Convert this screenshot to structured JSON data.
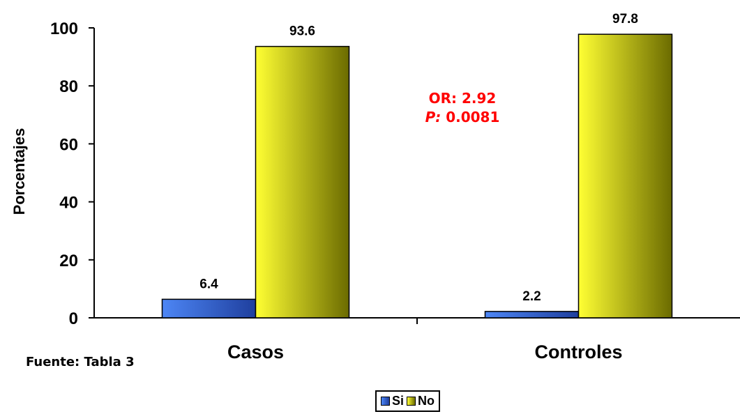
{
  "chart_data": {
    "type": "bar",
    "categories": [
      "Casos",
      "Controles"
    ],
    "series": [
      {
        "name": "Si",
        "values": [
          6.4,
          2.2
        ],
        "color": "#3a6fe0"
      },
      {
        "name": "No",
        "values": [
          93.6,
          97.8
        ],
        "color": "#e6e600"
      }
    ],
    "ylabel": "Porcentajes",
    "ylim": [
      0,
      100
    ],
    "yticks": [
      0,
      20,
      40,
      60,
      80,
      100
    ],
    "data_labels": [
      "6.4",
      "93.6",
      "2.2",
      "97.8"
    ],
    "legend_position": "bottom",
    "grid": false
  },
  "annotation": {
    "or_text": "OR: 2.92",
    "p_label": "P:",
    "p_value": " 0.0081",
    "color": "#ff0000"
  },
  "source": "Fuente: Tabla 3"
}
